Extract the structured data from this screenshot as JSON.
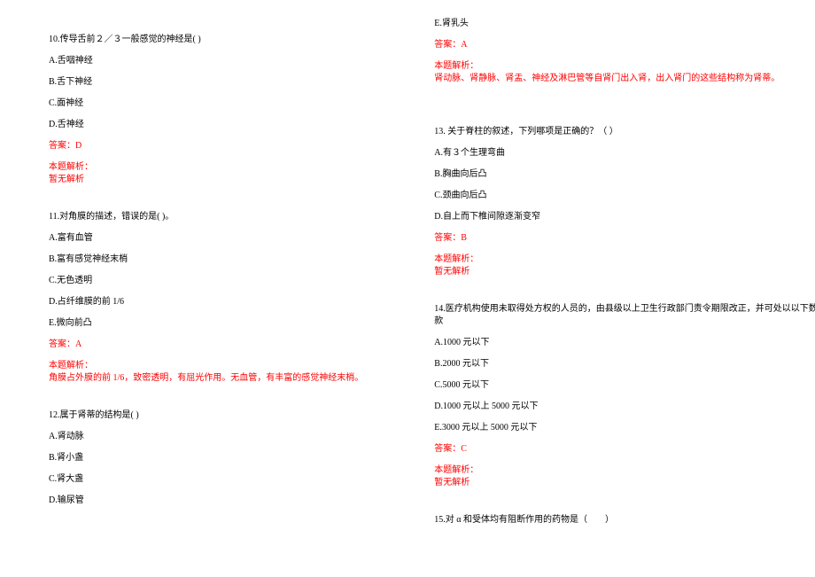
{
  "text_color": "#000000",
  "answer_color": "#ff0000",
  "background_color": "#ffffff",
  "font_size": 10,
  "left": {
    "q10": {
      "stem": "10.传导舌前２／３一般感觉的神经是(  )",
      "A": "A.舌咽神经",
      "B": "B.舌下神经",
      "C": "C.面神经",
      "D": "D.舌神经",
      "ans": "答案：D",
      "exp_h": "本题解析：",
      "exp": "暂无解析"
    },
    "q11": {
      "stem": "11.对角膜的描述，错误的是(  )。",
      "A": "A.富有血管",
      "B": "B.富有感觉神经末梢",
      "C": "C.无色透明",
      "D": "D.占纤维膜的前 1/6",
      "E": "E.微向前凸",
      "ans": "答案：A",
      "exp_h": "本题解析：",
      "exp": "角膜占外膜的前 1/6，致密透明，有屈光作用。无血管，有丰富的感觉神经末梢。"
    },
    "q12": {
      "stem": "12.属于肾蒂的结构是(  )",
      "A": "A.肾动脉",
      "B": "B.肾小盏",
      "C": "C.肾大盏",
      "D": "D.输尿管"
    }
  },
  "right": {
    "q12": {
      "E": "E.肾乳头",
      "ans": "答案：A",
      "exp_h": "本题解析：",
      "exp": "肾动脉、肾静脉、肾盂、神经及淋巴管等自肾门出入肾，出入肾门的这些结构称为肾蒂。"
    },
    "q13": {
      "stem": "13. 关于脊柱的叙述，下列哪项是正确的？（  ）",
      "A": "A.有３个生理弯曲",
      "B": "B.胸曲向后凸",
      "C": "C.颈曲向后凸",
      "D": "D.自上而下椎间隙逐渐变窄",
      "ans": "答案：B",
      "exp_h": "本题解析：",
      "exp": "暂无解析"
    },
    "q14": {
      "stem": "14.医疗机构使用未取得处方权的人员的，由县级以上卫生行政部门责令期限改正，并可处以以下数额罚",
      "stem2": "款",
      "A": "A.1000 元以下",
      "B": "B.2000 元以下",
      "C": "C.5000 元以下",
      "D": "D.1000 元以上 5000 元以下",
      "E": "E.3000 元以上 5000 元以下",
      "ans": "答案：C",
      "exp_h": "本题解析：",
      "exp": "暂无解析"
    },
    "q15": {
      "stem": "15.对 α 和受体均有阻断作用的药物是（　　）"
    }
  }
}
